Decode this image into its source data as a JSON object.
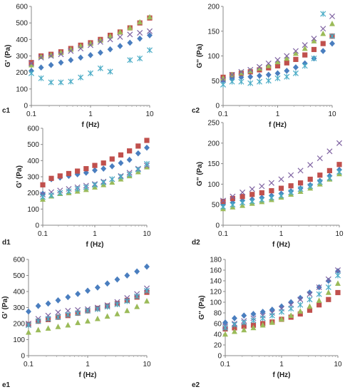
{
  "marker_colors": {
    "diamond": "#4a7ebf",
    "square": "#c0504d",
    "triangle": "#9bbb59",
    "cross": "#8064a2",
    "star": "#4bacc6"
  },
  "chart_data": [
    {
      "type": "scatter",
      "panel_label": "c1",
      "xlabel": "f (Hz)",
      "ylabel": "G' (Pa)",
      "x_scale": "log",
      "xlim": [
        0.1,
        10
      ],
      "ylim": [
        0,
        600
      ],
      "yticks": [
        0,
        100,
        200,
        300,
        400,
        500,
        600
      ],
      "xtick_labels": [
        "0.1",
        "1",
        "10"
      ],
      "x": [
        0.1,
        0.146,
        0.215,
        0.316,
        0.464,
        0.681,
        1,
        1.47,
        2.15,
        3.16,
        4.64,
        6.81,
        10
      ],
      "series": [
        {
          "marker": "diamond",
          "values": [
            210,
            230,
            245,
            260,
            275,
            290,
            305,
            320,
            340,
            360,
            380,
            405,
            425
          ]
        },
        {
          "marker": "square",
          "values": [
            260,
            300,
            310,
            325,
            345,
            365,
            380,
            400,
            425,
            445,
            470,
            500,
            530
          ]
        },
        {
          "marker": "triangle",
          "values": [
            245,
            295,
            305,
            320,
            340,
            360,
            375,
            395,
            420,
            445,
            470,
            505,
            535
          ]
        },
        {
          "marker": "cross",
          "values": [
            255,
            290,
            300,
            310,
            330,
            345,
            365,
            385,
            400,
            415,
            430,
            440,
            450
          ]
        },
        {
          "marker": "star",
          "values": [
            195,
            165,
            140,
            140,
            145,
            170,
            195,
            225,
            205,
            null,
            275,
            285,
            335
          ]
        }
      ]
    },
    {
      "type": "scatter",
      "panel_label": "c2",
      "xlabel": "f (Hz)",
      "ylabel": "G'' (Pa)",
      "x_scale": "log",
      "xlim": [
        0.1,
        10
      ],
      "ylim": [
        0,
        200
      ],
      "yticks": [
        0,
        50,
        100,
        150,
        200
      ],
      "xtick_labels": [
        "0.1",
        "1",
        "10"
      ],
      "x": [
        0.1,
        0.146,
        0.215,
        0.316,
        0.464,
        0.681,
        1,
        1.47,
        2.15,
        3.16,
        4.64,
        6.81,
        10
      ],
      "series": [
        {
          "marker": "diamond",
          "values": [
            50,
            55,
            57,
            58,
            60,
            62,
            65,
            70,
            77,
            85,
            95,
            110,
            125
          ]
        },
        {
          "marker": "square",
          "values": [
            57,
            62,
            65,
            68,
            72,
            76,
            80,
            86,
            93,
            102,
            113,
            125,
            140
          ]
        },
        {
          "marker": "triangle",
          "values": [
            55,
            62,
            66,
            70,
            75,
            80,
            88,
            95,
            105,
            115,
            130,
            145,
            165
          ]
        },
        {
          "marker": "cross",
          "values": [
            52,
            62,
            68,
            72,
            78,
            85,
            92,
            100,
            110,
            122,
            135,
            155,
            180
          ]
        },
        {
          "marker": "star",
          "values": [
            42,
            48,
            48,
            45,
            48,
            50,
            55,
            58,
            65,
            80,
            95,
            185,
            140
          ]
        }
      ]
    },
    {
      "type": "scatter",
      "panel_label": "d1",
      "xlabel": "f (Hz)",
      "ylabel": "G' (Pa)",
      "x_scale": "log",
      "xlim": [
        0.1,
        10
      ],
      "ylim": [
        0,
        600
      ],
      "yticks": [
        0,
        100,
        200,
        300,
        400,
        500,
        600
      ],
      "xtick_labels": [
        "0.1",
        "1",
        "10"
      ],
      "x": [
        0.1,
        0.146,
        0.215,
        0.316,
        0.464,
        0.681,
        1,
        1.47,
        2.15,
        3.16,
        4.64,
        6.81,
        10
      ],
      "series": [
        {
          "marker": "diamond",
          "values": [
            195,
            285,
            295,
            305,
            315,
            325,
            340,
            350,
            365,
            385,
            405,
            445,
            480
          ]
        },
        {
          "marker": "square",
          "values": [
            250,
            290,
            305,
            320,
            335,
            350,
            370,
            385,
            410,
            435,
            460,
            490,
            525
          ]
        },
        {
          "marker": "triangle",
          "values": [
            160,
            180,
            195,
            200,
            210,
            220,
            235,
            250,
            265,
            285,
            305,
            330,
            360
          ]
        },
        {
          "marker": "cross",
          "values": [
            190,
            205,
            215,
            225,
            235,
            245,
            255,
            270,
            285,
            305,
            325,
            350,
            370
          ]
        },
        {
          "marker": "star",
          "values": [
            175,
            185,
            200,
            210,
            225,
            235,
            250,
            265,
            285,
            300,
            315,
            345,
            380
          ]
        }
      ]
    },
    {
      "type": "scatter",
      "panel_label": "d2",
      "xlabel": "f (Hz)",
      "ylabel": "G'' (Pa)",
      "x_scale": "log",
      "xlim": [
        0.1,
        10
      ],
      "ylim": [
        0,
        250
      ],
      "yticks": [
        0,
        50,
        100,
        150,
        200,
        250
      ],
      "xtick_labels": [
        "0.1",
        "1",
        "10"
      ],
      "x": [
        0.1,
        0.146,
        0.215,
        0.316,
        0.464,
        0.681,
        1,
        1.47,
        2.15,
        3.16,
        4.64,
        6.81,
        10
      ],
      "series": [
        {
          "marker": "diamond",
          "values": [
            50,
            55,
            60,
            63,
            67,
            72,
            77,
            83,
            90,
            98,
            108,
            120,
            135
          ]
        },
        {
          "marker": "square",
          "values": [
            58,
            65,
            70,
            75,
            79,
            84,
            90,
            96,
            103,
            112,
            122,
            133,
            148
          ]
        },
        {
          "marker": "triangle",
          "values": [
            40,
            44,
            48,
            53,
            57,
            62,
            68,
            75,
            82,
            90,
            100,
            112,
            125
          ]
        },
        {
          "marker": "cross",
          "values": [
            60,
            70,
            80,
            88,
            95,
            103,
            112,
            122,
            133,
            147,
            163,
            180,
            200
          ]
        },
        {
          "marker": "star",
          "values": [
            45,
            50,
            55,
            58,
            62,
            67,
            72,
            80,
            88,
            95,
            105,
            115,
            130
          ]
        }
      ]
    },
    {
      "type": "scatter",
      "panel_label": "e1",
      "xlabel": "f (Hz)",
      "ylabel": "G' (Pa)",
      "x_scale": "log",
      "xlim": [
        0.1,
        10
      ],
      "ylim": [
        0,
        600
      ],
      "yticks": [
        0,
        100,
        200,
        300,
        400,
        500,
        600
      ],
      "xtick_labels": [
        "0.1",
        "1",
        "10"
      ],
      "x": [
        0.1,
        0.146,
        0.215,
        0.316,
        0.464,
        0.681,
        1,
        1.47,
        2.15,
        3.16,
        4.64,
        6.81,
        10
      ],
      "series": [
        {
          "marker": "diamond",
          "values": [
            275,
            310,
            325,
            345,
            365,
            385,
            405,
            425,
            450,
            475,
            500,
            525,
            555
          ]
        },
        {
          "marker": "square",
          "values": [
            195,
            215,
            225,
            240,
            250,
            265,
            280,
            295,
            310,
            325,
            345,
            365,
            395
          ]
        },
        {
          "marker": "triangle",
          "values": [
            145,
            160,
            170,
            180,
            190,
            205,
            215,
            230,
            245,
            260,
            280,
            305,
            340
          ]
        },
        {
          "marker": "cross",
          "values": [
            200,
            230,
            250,
            270,
            280,
            285,
            290,
            300,
            315,
            335,
            360,
            385,
            420
          ]
        },
        {
          "marker": "star",
          "values": [
            190,
            215,
            230,
            240,
            255,
            265,
            280,
            290,
            305,
            320,
            340,
            370,
            405
          ]
        }
      ]
    },
    {
      "type": "scatter",
      "panel_label": "e2",
      "xlabel": "f (Hz)",
      "ylabel": "G'' (Pa)",
      "x_scale": "log",
      "xlim": [
        0.1,
        10
      ],
      "ylim": [
        0,
        180
      ],
      "yticks": [
        0,
        20,
        40,
        60,
        80,
        100,
        120,
        140,
        160,
        180
      ],
      "xtick_labels": [
        "0.1",
        "1",
        "10"
      ],
      "x": [
        0.1,
        0.146,
        0.215,
        0.316,
        0.464,
        0.681,
        1,
        1.47,
        2.15,
        3.16,
        4.64,
        6.81,
        10
      ],
      "series": [
        {
          "marker": "diamond",
          "values": [
            62,
            70,
            75,
            78,
            82,
            86,
            92,
            100,
            108,
            118,
            128,
            140,
            158
          ]
        },
        {
          "marker": "square",
          "values": [
            50,
            52,
            55,
            57,
            60,
            63,
            68,
            72,
            78,
            85,
            95,
            105,
            118
          ]
        },
        {
          "marker": "triangle",
          "values": [
            40,
            45,
            48,
            52,
            57,
            62,
            68,
            75,
            83,
            92,
            103,
            118,
            135
          ]
        },
        {
          "marker": "cross",
          "values": [
            55,
            60,
            65,
            70,
            75,
            80,
            88,
            95,
            105,
            115,
            128,
            143,
            160
          ]
        },
        {
          "marker": "star",
          "values": [
            52,
            58,
            62,
            66,
            70,
            75,
            82,
            88,
            95,
            105,
            115,
            128,
            150
          ]
        }
      ]
    }
  ]
}
